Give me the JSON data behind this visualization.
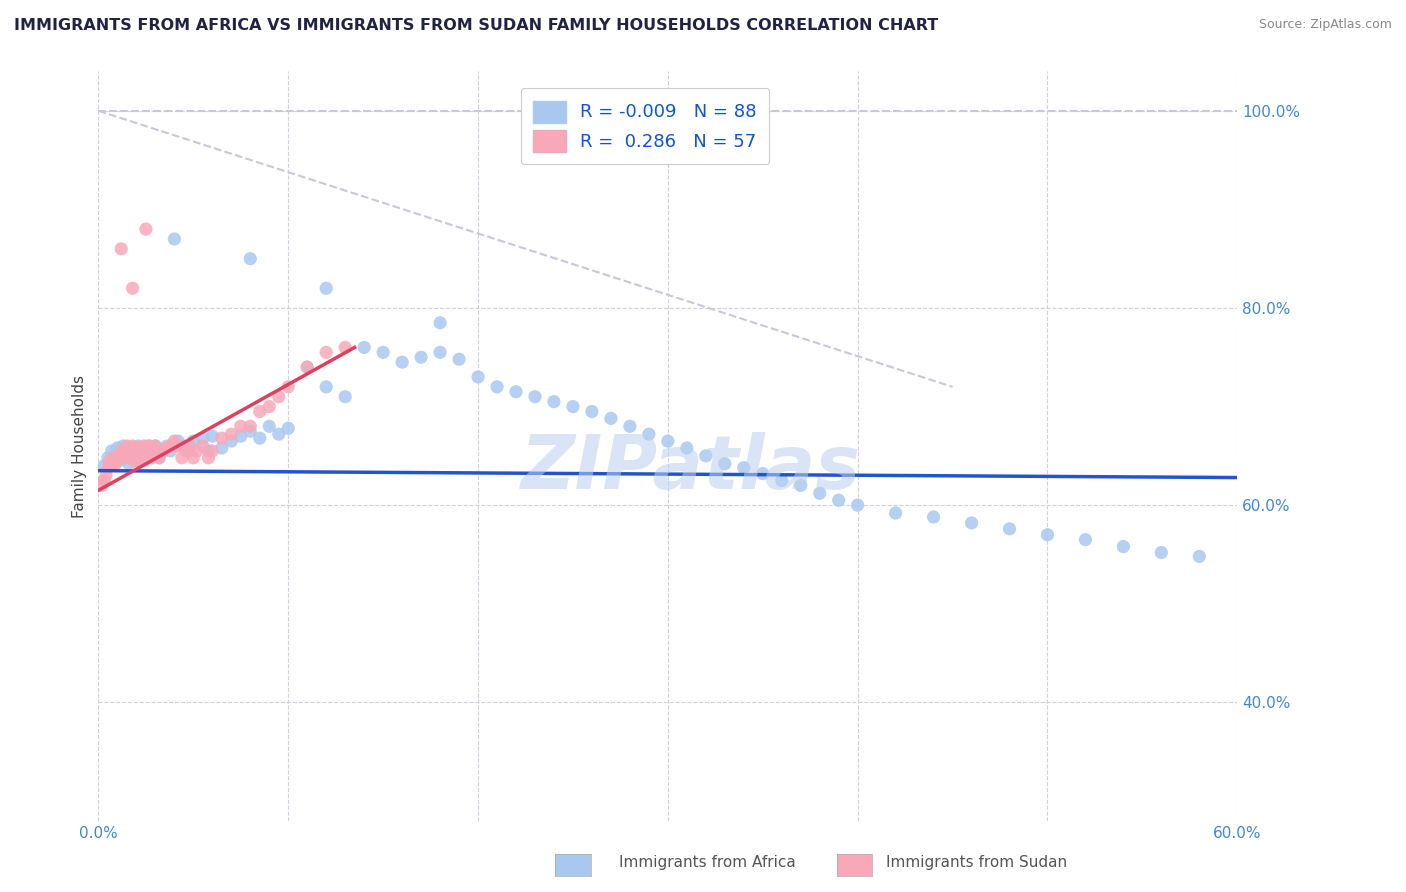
{
  "title": "IMMIGRANTS FROM AFRICA VS IMMIGRANTS FROM SUDAN FAMILY HOUSEHOLDS CORRELATION CHART",
  "source": "Source: ZipAtlas.com",
  "ylabel": "Family Households",
  "xlim": [
    0.0,
    0.6
  ],
  "ylim": [
    0.28,
    1.04
  ],
  "color_africa": "#a8c8f0",
  "color_sudan": "#f8a8b8",
  "trendline_africa_color": "#2255cc",
  "trendline_sudan_color": "#e04060",
  "dashed_line_color": "#c8c8d8",
  "watermark": "ZIPatlas",
  "legend_label_1": "Immigrants from Africa",
  "legend_label_2": "Immigrants from Sudan",
  "R1": "-0.009",
  "N1": "88",
  "R2": "0.286",
  "N2": "57",
  "africa_x": [
    0.003,
    0.005,
    0.007,
    0.008,
    0.009,
    0.01,
    0.011,
    0.012,
    0.013,
    0.014,
    0.015,
    0.016,
    0.017,
    0.018,
    0.019,
    0.02,
    0.021,
    0.022,
    0.023,
    0.024,
    0.025,
    0.026,
    0.027,
    0.028,
    0.03,
    0.032,
    0.034,
    0.036,
    0.038,
    0.04,
    0.042,
    0.045,
    0.048,
    0.05,
    0.055,
    0.058,
    0.06,
    0.065,
    0.07,
    0.075,
    0.08,
    0.085,
    0.09,
    0.095,
    0.1,
    0.11,
    0.12,
    0.13,
    0.14,
    0.15,
    0.16,
    0.17,
    0.18,
    0.19,
    0.2,
    0.21,
    0.22,
    0.23,
    0.24,
    0.25,
    0.26,
    0.27,
    0.28,
    0.29,
    0.3,
    0.31,
    0.32,
    0.33,
    0.34,
    0.35,
    0.36,
    0.37,
    0.38,
    0.39,
    0.4,
    0.42,
    0.44,
    0.46,
    0.48,
    0.5,
    0.52,
    0.54,
    0.56,
    0.58,
    0.04,
    0.08,
    0.12,
    0.18
  ],
  "africa_y": [
    0.64,
    0.648,
    0.655,
    0.642,
    0.65,
    0.658,
    0.645,
    0.652,
    0.66,
    0.648,
    0.655,
    0.642,
    0.65,
    0.658,
    0.645,
    0.653,
    0.66,
    0.648,
    0.655,
    0.645,
    0.65,
    0.66,
    0.648,
    0.655,
    0.66,
    0.648,
    0.655,
    0.66,
    0.655,
    0.66,
    0.665,
    0.66,
    0.655,
    0.665,
    0.668,
    0.655,
    0.67,
    0.658,
    0.665,
    0.67,
    0.675,
    0.668,
    0.68,
    0.672,
    0.678,
    0.74,
    0.72,
    0.71,
    0.76,
    0.755,
    0.745,
    0.75,
    0.755,
    0.748,
    0.73,
    0.72,
    0.715,
    0.71,
    0.705,
    0.7,
    0.695,
    0.688,
    0.68,
    0.672,
    0.665,
    0.658,
    0.65,
    0.642,
    0.638,
    0.632,
    0.625,
    0.62,
    0.612,
    0.605,
    0.6,
    0.592,
    0.588,
    0.582,
    0.576,
    0.57,
    0.565,
    0.558,
    0.552,
    0.548,
    0.87,
    0.85,
    0.82,
    0.785
  ],
  "sudan_x": [
    0.002,
    0.003,
    0.004,
    0.005,
    0.006,
    0.007,
    0.008,
    0.009,
    0.01,
    0.011,
    0.012,
    0.013,
    0.014,
    0.015,
    0.016,
    0.017,
    0.018,
    0.019,
    0.02,
    0.021,
    0.022,
    0.023,
    0.024,
    0.025,
    0.026,
    0.027,
    0.028,
    0.029,
    0.03,
    0.032,
    0.034,
    0.036,
    0.038,
    0.04,
    0.042,
    0.044,
    0.046,
    0.048,
    0.05,
    0.052,
    0.055,
    0.058,
    0.06,
    0.065,
    0.07,
    0.075,
    0.08,
    0.085,
    0.09,
    0.095,
    0.1,
    0.11,
    0.12,
    0.13,
    0.012,
    0.018,
    0.025
  ],
  "sudan_y": [
    0.62,
    0.625,
    0.63,
    0.638,
    0.645,
    0.64,
    0.648,
    0.642,
    0.65,
    0.648,
    0.655,
    0.648,
    0.655,
    0.66,
    0.648,
    0.655,
    0.66,
    0.645,
    0.65,
    0.658,
    0.645,
    0.652,
    0.66,
    0.648,
    0.655,
    0.66,
    0.648,
    0.655,
    0.66,
    0.648,
    0.655,
    0.658,
    0.66,
    0.665,
    0.66,
    0.648,
    0.655,
    0.66,
    0.648,
    0.655,
    0.66,
    0.648,
    0.655,
    0.668,
    0.672,
    0.68,
    0.68,
    0.695,
    0.7,
    0.71,
    0.72,
    0.74,
    0.755,
    0.76,
    0.86,
    0.82,
    0.88
  ]
}
